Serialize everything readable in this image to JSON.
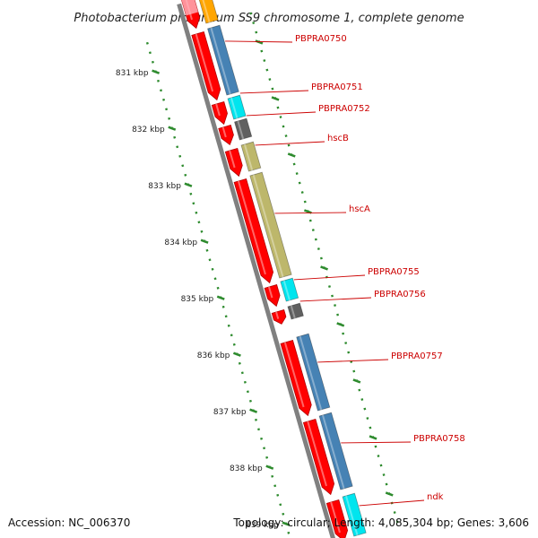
{
  "title": "Photobacterium profundum SS9 chromosome 1, complete genome",
  "colors": {
    "cds": "#ff0000",
    "gene_default": "#4682b4",
    "gene_cyan": "#00e5ee",
    "gene_gray": "#606060",
    "gene_khaki": "#bdb76b",
    "gene_orange": "#ffa500",
    "gene_pink": "#ffb6c1",
    "backbone": "#808080",
    "ticks": "#2e8b2e",
    "label": "#cc0000"
  },
  "ticks": [
    {
      "label": "831 kbp"
    },
    {
      "label": "832 kbp"
    },
    {
      "label": "833 kbp"
    },
    {
      "label": "834 kbp"
    },
    {
      "label": "835 kbp"
    },
    {
      "label": "836 kbp"
    },
    {
      "label": "837 kbp"
    },
    {
      "label": "838 kbp"
    },
    {
      "label": "839 kbp"
    }
  ],
  "gene_labels": [
    {
      "text": "PBPRA0750"
    },
    {
      "text": "PBPRA0751"
    },
    {
      "text": "PBPRA0752"
    },
    {
      "text": "hscB"
    },
    {
      "text": "hscA"
    },
    {
      "text": "PBPRA0755"
    },
    {
      "text": "PBPRA0756"
    },
    {
      "text": "PBPRA0757"
    },
    {
      "text": "PBPRA0758"
    },
    {
      "text": "ndk"
    }
  ],
  "footer": {
    "accession": "Accession: NC_006370",
    "summary": "Topology: circular; Length: 4,085,304 bp; Genes: 3,606"
  }
}
